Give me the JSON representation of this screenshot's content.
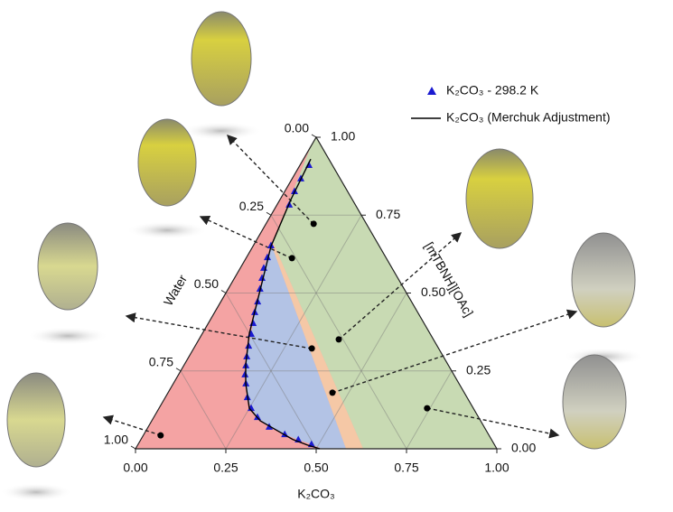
{
  "chart_data": {
    "type": "ternary",
    "axes": {
      "bottom": {
        "label": "K₂CO₃",
        "ticks": [
          {
            "value": 0,
            "label": "0.00"
          },
          {
            "value": 0.25,
            "label": "0.25"
          },
          {
            "value": 0.5,
            "label": "0.50"
          },
          {
            "value": 0.75,
            "label": "0.75"
          },
          {
            "value": 1,
            "label": "1.00"
          }
        ]
      },
      "right": {
        "label": "[mTBNH][OAc]",
        "ticks": [
          {
            "value": 0,
            "label": "0.00"
          },
          {
            "value": 0.25,
            "label": "0.25"
          },
          {
            "value": 0.5,
            "label": "0.50"
          },
          {
            "value": 0.75,
            "label": "0.75"
          },
          {
            "value": 1,
            "label": "1.00"
          }
        ]
      },
      "left": {
        "label": "Water",
        "ticks": [
          {
            "value": 0,
            "label": "0.00"
          },
          {
            "value": 0.25,
            "label": "0.25"
          },
          {
            "value": 0.5,
            "label": "0.50"
          },
          {
            "value": 0.75,
            "label": "0.75"
          },
          {
            "value": 1,
            "label": "1.00"
          }
        ]
      }
    },
    "grid": true,
    "series": [
      {
        "name": "K₂CO₃ - 298.2 K",
        "color": "#1a1ad0",
        "marker": "triangle",
        "x": [
          0.025,
          0.024,
          0.027,
          0.034,
          0.049,
          0.058,
          0.065,
          0.076,
          0.088,
          0.102,
          0.111,
          0.124,
          0.136,
          0.148,
          0.16,
          0.172,
          0.184,
          0.201,
          0.227,
          0.255,
          0.287,
          0.335,
          0.39,
          0.436,
          0.48
        ],
        "values": [
          0.91,
          0.867,
          0.826,
          0.783,
          0.652,
          0.614,
          0.58,
          0.548,
          0.513,
          0.472,
          0.438,
          0.403,
          0.368,
          0.33,
          0.296,
          0.267,
          0.238,
          0.209,
          0.165,
          0.13,
          0.101,
          0.07,
          0.046,
          0.029,
          0.014
        ]
      },
      {
        "name": "K₂CO₃ (Merchuk Adjustment)",
        "color": "#000000",
        "marker": "line",
        "x": [
          0.02,
          0.03,
          0.05,
          0.09,
          0.13,
          0.17,
          0.2,
          0.25,
          0.3,
          0.36,
          0.42,
          0.47,
          0.51
        ],
        "values": [
          0.93,
          0.8,
          0.65,
          0.51,
          0.37,
          0.27,
          0.21,
          0.13,
          0.09,
          0.06,
          0.03,
          0.012,
          0
        ]
      }
    ],
    "points": {
      "x": [
        0.132,
        0.127,
        0.327,
        0.387,
        0.455,
        0.742,
        0.048
      ],
      "values": [
        0.722,
        0.612,
        0.322,
        0.351,
        0.18,
        0.13,
        0.043
      ]
    }
  }
}
